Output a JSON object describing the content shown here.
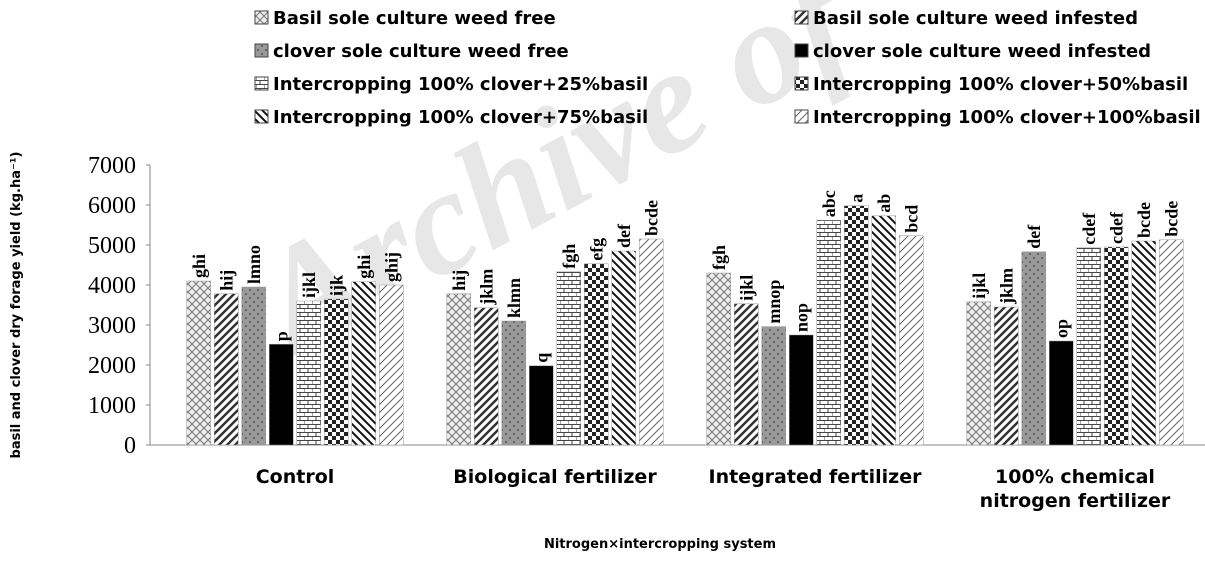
{
  "chart_data": {
    "type": "bar",
    "watermark": "Archive of",
    "y_label": "basil and clover dry forage yield (kg.ha⁻¹)",
    "x_label": "Nitrogen×intercropping system",
    "categories": [
      "Control",
      "Biological fertilizer",
      "Integrated fertilizer",
      "100% chemical nitrogen fertilizer"
    ],
    "ylim": [
      0,
      7000
    ],
    "yticks": [
      0,
      1000,
      2000,
      3000,
      4000,
      5000,
      6000,
      7000
    ],
    "series": [
      {
        "name": "Basil sole culture weed free",
        "color": "#777777",
        "values": [
          4100,
          3780,
          4300,
          3580
        ],
        "labels": [
          "ghi",
          "hij",
          "fgh",
          "ijkl"
        ]
      },
      {
        "name": "Basil sole culture weed infested",
        "color": "#333333",
        "values": [
          3780,
          3430,
          3530,
          3450
        ],
        "labels": [
          "hij",
          "jklm",
          "ijkl",
          "jklm"
        ]
      },
      {
        "name": "clover sole culture weed free",
        "color": "#555555",
        "values": [
          3950,
          3100,
          2960,
          4830
        ],
        "labels": [
          "lmno",
          "klmn",
          "mnop",
          "def"
        ]
      },
      {
        "name": "clover sole culture weed  infested",
        "color": "#000000",
        "values": [
          2520,
          1980,
          2750,
          2600
        ],
        "labels": [
          "p",
          "q",
          "nop",
          "op"
        ]
      },
      {
        "name": "Intercropping 100% clover+25%basil",
        "color": "#444444",
        "values": [
          3600,
          4330,
          5620,
          4930
        ],
        "labels": [
          "ijkl",
          "fgh",
          "abc",
          "cdef"
        ]
      },
      {
        "name": "Intercropping 100%  clover+50%basil",
        "color": "#222222",
        "values": [
          3650,
          4530,
          5980,
          4950
        ],
        "labels": [
          "ijk",
          "efg",
          "a",
          "cdef"
        ]
      },
      {
        "name": "Intercropping 100% clover+75%basil",
        "color": "#111111",
        "values": [
          4080,
          4850,
          5730,
          5100
        ],
        "labels": [
          "ghi",
          "def",
          "ab",
          "bcde"
        ]
      },
      {
        "name": "Intercropping 100% clover+100%basil",
        "color": "#666666",
        "values": [
          4000,
          5150,
          5230,
          5130
        ],
        "labels": [
          "ghij",
          "bcde",
          "bcd",
          "bcde"
        ]
      }
    ]
  }
}
